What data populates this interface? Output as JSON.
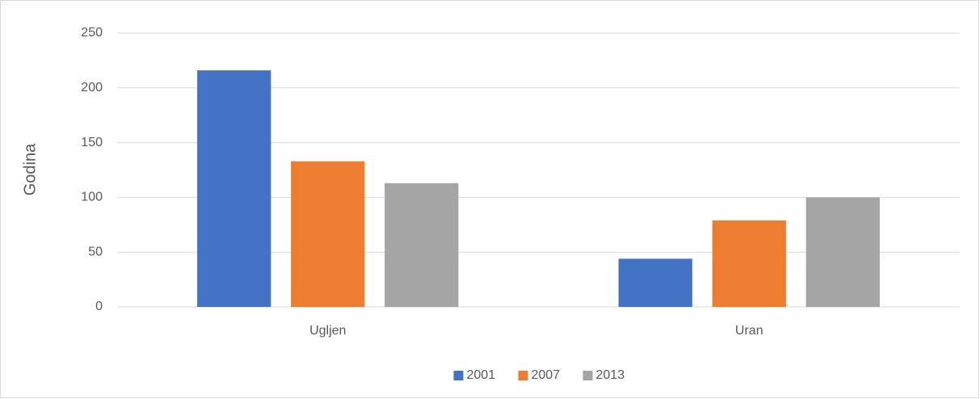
{
  "chart_data": {
    "type": "bar",
    "ylabel": "Godina",
    "categories": [
      "Ugljen",
      "Uran"
    ],
    "series": [
      {
        "name": "2001",
        "color": "#4472c4",
        "values": [
          216,
          44
        ]
      },
      {
        "name": "2007",
        "color": "#ed7d31",
        "values": [
          133,
          79
        ]
      },
      {
        "name": "2013",
        "color": "#a5a5a5",
        "values": [
          113,
          100
        ]
      }
    ],
    "ylim": [
      0,
      250
    ],
    "yticks": [
      0,
      50,
      100,
      150,
      200,
      250
    ],
    "grid": true,
    "legend": "bottom"
  }
}
